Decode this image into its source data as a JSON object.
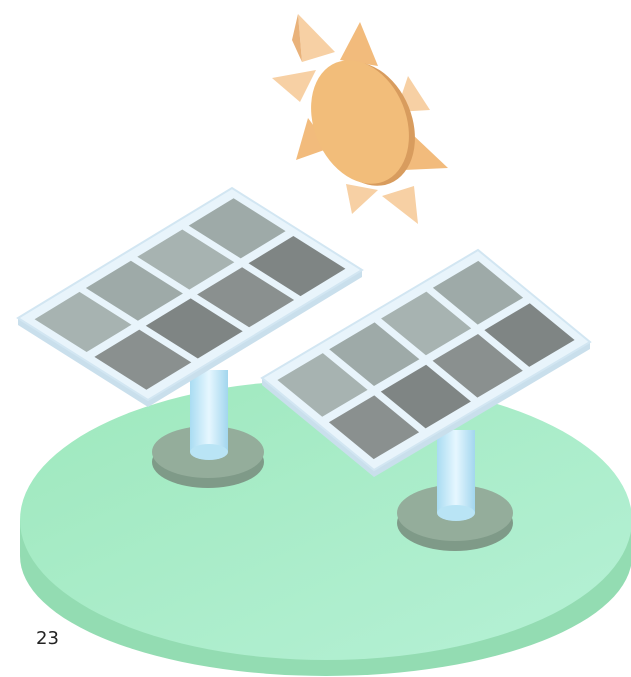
{
  "label": "23"
}
